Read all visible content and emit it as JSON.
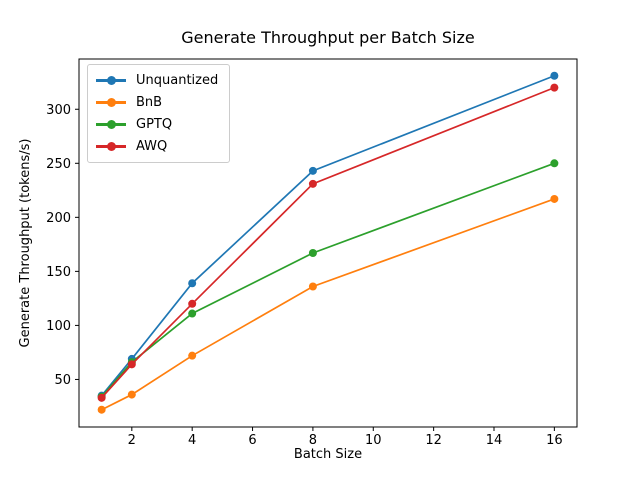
{
  "chart_data": {
    "type": "line",
    "title": "Generate Throughput per Batch Size",
    "xlabel": "Batch Size",
    "ylabel": "Generate Throughput (tokens/s)",
    "x": [
      1,
      2,
      4,
      8,
      16
    ],
    "series": [
      {
        "name": "Unquantized",
        "color": "#1f77b4",
        "values": [
          35,
          69,
          139,
          243,
          331
        ]
      },
      {
        "name": "BnB",
        "color": "#ff7f0e",
        "values": [
          22,
          36,
          72,
          136,
          217
        ]
      },
      {
        "name": "GPTQ",
        "color": "#2ca02c",
        "values": [
          34,
          66,
          111,
          167,
          250
        ]
      },
      {
        "name": "AWQ",
        "color": "#d62728",
        "values": [
          33,
          64,
          120,
          231,
          320
        ]
      }
    ],
    "x_ticks": [
      2,
      4,
      6,
      8,
      10,
      12,
      14,
      16
    ],
    "y_ticks": [
      50,
      100,
      150,
      200,
      250,
      300
    ],
    "xlim": [
      0.25,
      16.75
    ],
    "ylim": [
      6,
      346.5
    ],
    "grid": false,
    "legend_position": "upper left",
    "marker": "o",
    "axis_color": "#000000",
    "background": "#ffffff"
  }
}
